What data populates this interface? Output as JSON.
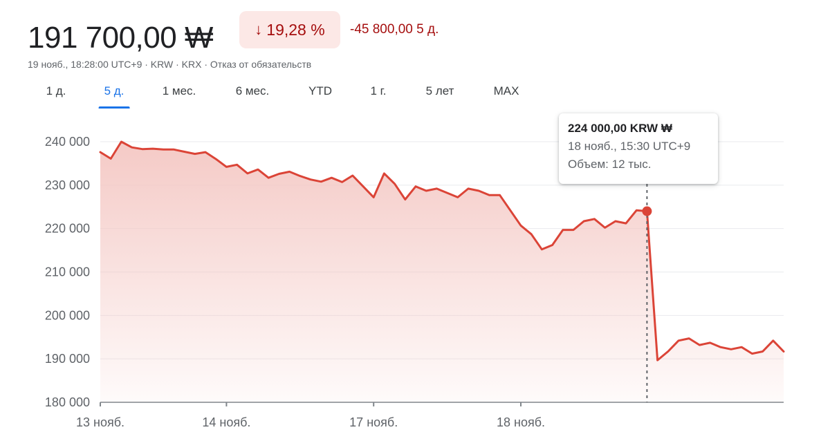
{
  "header": {
    "price": "191 700,00 ₩",
    "change_arrow": "↓",
    "change_percent": "19,28 %",
    "change_abs": "-45 800,00 5 д.",
    "meta": "19 нояб., 18:28:00 UTC+9 · KRW · KRX · Отказ от обязательств"
  },
  "tabs": [
    {
      "label": "1 д.",
      "active": false
    },
    {
      "label": "5 д.",
      "active": true
    },
    {
      "label": "1 мес.",
      "active": false
    },
    {
      "label": "6 мес.",
      "active": false
    },
    {
      "label": "YTD",
      "active": false
    },
    {
      "label": "1 г.",
      "active": false
    },
    {
      "label": "5 лет",
      "active": false
    },
    {
      "label": "MAX",
      "active": false
    }
  ],
  "tooltip": {
    "price": "224 000,00 KRW ₩",
    "time": "18 нояб., 15:30 UTC+9",
    "volume": "Объем: 12 тыс."
  },
  "colors": {
    "line": "#db4437",
    "fill": "#f4c7c3",
    "negative_text": "#a50e0e",
    "active_tab": "#1a73e8"
  },
  "chart_data": {
    "type": "area",
    "title": "",
    "xlabel": "",
    "ylabel": "",
    "ylim": [
      180000,
      240000
    ],
    "yticks": [
      240000,
      230000,
      220000,
      210000,
      200000,
      190000,
      180000
    ],
    "ytick_labels": [
      "240 000",
      "230 000",
      "220 000",
      "210 000",
      "200 000",
      "190 000",
      "180 000"
    ],
    "xtick_labels": [
      "13 нояб.",
      "14 нояб.",
      "17 нояб.",
      "18 нояб."
    ],
    "xtick_indices": [
      0,
      12,
      26,
      40
    ],
    "grid": true,
    "highlight_index": 52,
    "series": [
      {
        "values": [
          237600,
          236100,
          240000,
          238700,
          238300,
          238400,
          238200,
          238200,
          237700,
          237200,
          237600,
          236000,
          234200,
          234700,
          232700,
          233600,
          231700,
          232600,
          233100,
          232100,
          231300,
          230800,
          231700,
          230700,
          232200,
          229700,
          227200,
          232700,
          230300,
          226700,
          229700,
          228700,
          229200,
          228200,
          227200,
          229200,
          228700,
          227700,
          227700,
          224200,
          220700,
          218700,
          215200,
          216200,
          219700,
          219700,
          221700,
          222200,
          220200,
          221700,
          221200,
          224200,
          224000,
          189700,
          191700,
          194200,
          194700,
          193200,
          193700,
          192700,
          192200,
          192700,
          191200,
          191700,
          194200,
          191700
        ]
      }
    ]
  }
}
